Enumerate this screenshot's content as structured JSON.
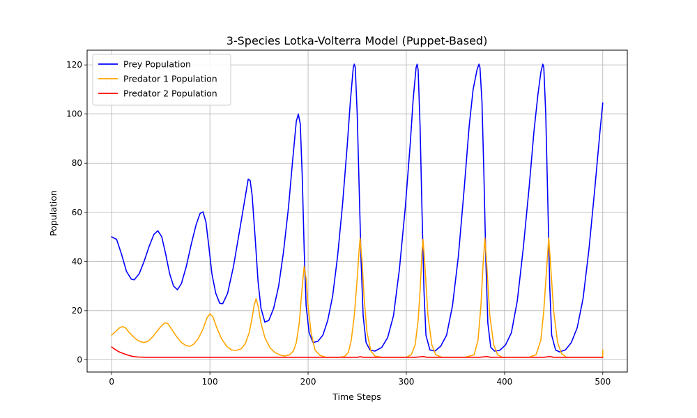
{
  "chart_data": {
    "type": "line",
    "title": "3-Species Lotka-Volterra Model (Puppet-Based)",
    "xlabel": "Time Steps",
    "ylabel": "Population",
    "xlim": [
      -25,
      525
    ],
    "ylim": [
      -5,
      126
    ],
    "xticks": [
      0,
      100,
      200,
      300,
      400,
      500
    ],
    "yticks": [
      0,
      20,
      40,
      60,
      80,
      100,
      120
    ],
    "grid": true,
    "legend_position": "top-left",
    "series": [
      {
        "name": "Prey Population",
        "color": "#0000ff",
        "points": [
          [
            0,
            50
          ],
          [
            5,
            49
          ],
          [
            10,
            43
          ],
          [
            15,
            36
          ],
          [
            20,
            32.8
          ],
          [
            23,
            32.5
          ],
          [
            28,
            35
          ],
          [
            33,
            40
          ],
          [
            38,
            46
          ],
          [
            43,
            51
          ],
          [
            47,
            52.5
          ],
          [
            51,
            50
          ],
          [
            55,
            43
          ],
          [
            59,
            35
          ],
          [
            63,
            30
          ],
          [
            67,
            28.5
          ],
          [
            71,
            31
          ],
          [
            76,
            38
          ],
          [
            81,
            47
          ],
          [
            86,
            55
          ],
          [
            90,
            59.5
          ],
          [
            93,
            60.2
          ],
          [
            96,
            56
          ],
          [
            99,
            46
          ],
          [
            102,
            35
          ],
          [
            106,
            27
          ],
          [
            110,
            23
          ],
          [
            113,
            22.8
          ],
          [
            118,
            27
          ],
          [
            124,
            38
          ],
          [
            130,
            52
          ],
          [
            135,
            64
          ],
          [
            139,
            73.5
          ],
          [
            141,
            73
          ],
          [
            143,
            67
          ],
          [
            146,
            50
          ],
          [
            149,
            32
          ],
          [
            152,
            21
          ],
          [
            156,
            15.3
          ],
          [
            160,
            16
          ],
          [
            165,
            21
          ],
          [
            170,
            30
          ],
          [
            175,
            44
          ],
          [
            180,
            62
          ],
          [
            184,
            80
          ],
          [
            188,
            97
          ],
          [
            190,
            100
          ],
          [
            192,
            96
          ],
          [
            194,
            75
          ],
          [
            196,
            45
          ],
          [
            198,
            22
          ],
          [
            201,
            11
          ],
          [
            205,
            7
          ],
          [
            210,
            7.5
          ],
          [
            215,
            10
          ],
          [
            220,
            16
          ],
          [
            225,
            26
          ],
          [
            230,
            42
          ],
          [
            235,
            63
          ],
          [
            240,
            88
          ],
          [
            243,
            105
          ],
          [
            246,
            119
          ],
          [
            247,
            120.3
          ],
          [
            248,
            119
          ],
          [
            250,
            100
          ],
          [
            252,
            70
          ],
          [
            254,
            40
          ],
          [
            256,
            18
          ],
          [
            259,
            7
          ],
          [
            263,
            4
          ],
          [
            268,
            3.5
          ],
          [
            275,
            5
          ],
          [
            281,
            9
          ],
          [
            287,
            18
          ],
          [
            293,
            37
          ],
          [
            299,
            62
          ],
          [
            304,
            88
          ],
          [
            307,
            106
          ],
          [
            310,
            119
          ],
          [
            311,
            120.3
          ],
          [
            312,
            118
          ],
          [
            314,
            95
          ],
          [
            316,
            60
          ],
          [
            318,
            28
          ],
          [
            320,
            10
          ],
          [
            324,
            4
          ],
          [
            329,
            3.5
          ],
          [
            335,
            5.5
          ],
          [
            341,
            10
          ],
          [
            347,
            22
          ],
          [
            353,
            42
          ],
          [
            359,
            70
          ],
          [
            364,
            95
          ],
          [
            368,
            110
          ],
          [
            372,
            118
          ],
          [
            374,
            120.3
          ],
          [
            375,
            119
          ],
          [
            377,
            105
          ],
          [
            379,
            75
          ],
          [
            381,
            40
          ],
          [
            383,
            15
          ],
          [
            386,
            5
          ],
          [
            390,
            3.5
          ],
          [
            395,
            3.8
          ],
          [
            401,
            6
          ],
          [
            407,
            11
          ],
          [
            413,
            24
          ],
          [
            419,
            45
          ],
          [
            425,
            70
          ],
          [
            430,
            93
          ],
          [
            434,
            108
          ],
          [
            437,
            117
          ],
          [
            439,
            120.3
          ],
          [
            440,
            119
          ],
          [
            442,
            100
          ],
          [
            444,
            65
          ],
          [
            446,
            30
          ],
          [
            448,
            10
          ],
          [
            452,
            4
          ],
          [
            456,
            3.2
          ],
          [
            462,
            4
          ],
          [
            468,
            7
          ],
          [
            474,
            13
          ],
          [
            480,
            25
          ],
          [
            486,
            45
          ],
          [
            492,
            70
          ],
          [
            497,
            92
          ],
          [
            500,
            104.5
          ]
        ]
      },
      {
        "name": "Predator 1 Population",
        "color": "#ffa500",
        "points": [
          [
            0,
            10
          ],
          [
            4,
            11.5
          ],
          [
            8,
            13
          ],
          [
            11,
            13.5
          ],
          [
            14,
            13
          ],
          [
            18,
            11
          ],
          [
            23,
            9
          ],
          [
            28,
            7.5
          ],
          [
            33,
            7
          ],
          [
            37,
            7.5
          ],
          [
            41,
            9
          ],
          [
            45,
            11
          ],
          [
            50,
            13.5
          ],
          [
            54,
            15
          ],
          [
            57,
            14.8
          ],
          [
            61,
            12.5
          ],
          [
            66,
            9.5
          ],
          [
            71,
            7
          ],
          [
            76,
            5.7
          ],
          [
            80,
            5.5
          ],
          [
            84,
            6.5
          ],
          [
            88,
            8.5
          ],
          [
            93,
            12.5
          ],
          [
            97,
            17
          ],
          [
            100,
            18.7
          ],
          [
            103,
            17.5
          ],
          [
            107,
            13
          ],
          [
            112,
            8.5
          ],
          [
            117,
            5.5
          ],
          [
            122,
            4
          ],
          [
            127,
            3.8
          ],
          [
            132,
            4.5
          ],
          [
            136,
            6.5
          ],
          [
            140,
            11
          ],
          [
            143,
            17
          ],
          [
            145,
            22
          ],
          [
            147,
            24.8
          ],
          [
            149,
            22
          ],
          [
            152,
            15
          ],
          [
            156,
            9
          ],
          [
            161,
            5
          ],
          [
            166,
            3
          ],
          [
            171,
            2
          ],
          [
            176,
            1.5
          ],
          [
            181,
            2
          ],
          [
            185,
            3.5
          ],
          [
            188,
            7
          ],
          [
            191,
            15
          ],
          [
            193,
            25
          ],
          [
            195,
            34
          ],
          [
            196,
            38
          ],
          [
            198,
            33
          ],
          [
            200,
            22
          ],
          [
            203,
            11
          ],
          [
            207,
            4
          ],
          [
            212,
            1.8
          ],
          [
            218,
            1
          ],
          [
            225,
            1
          ],
          [
            232,
            1
          ],
          [
            237,
            1.3
          ],
          [
            241,
            3
          ],
          [
            244,
            8
          ],
          [
            247,
            18
          ],
          [
            250,
            33
          ],
          [
            252,
            45
          ],
          [
            253,
            49.5
          ],
          [
            255,
            40
          ],
          [
            257,
            25
          ],
          [
            260,
            11
          ],
          [
            264,
            3.5
          ],
          [
            268,
            1.5
          ],
          [
            275,
            1
          ],
          [
            290,
            1
          ],
          [
            300,
            1
          ],
          [
            305,
            2
          ],
          [
            309,
            6
          ],
          [
            312,
            16
          ],
          [
            314,
            28
          ],
          [
            316,
            44
          ],
          [
            317,
            49
          ],
          [
            319,
            38
          ],
          [
            322,
            18
          ],
          [
            326,
            6
          ],
          [
            330,
            2
          ],
          [
            336,
            1
          ],
          [
            360,
            1
          ],
          [
            369,
            2
          ],
          [
            373,
            8
          ],
          [
            376,
            22
          ],
          [
            378,
            38
          ],
          [
            380,
            49.5
          ],
          [
            382,
            38
          ],
          [
            385,
            18
          ],
          [
            389,
            6
          ],
          [
            393,
            2
          ],
          [
            398,
            1
          ],
          [
            425,
            1
          ],
          [
            432,
            2
          ],
          [
            437,
            8
          ],
          [
            440,
            20
          ],
          [
            443,
            38
          ],
          [
            445,
            49.5
          ],
          [
            447,
            38
          ],
          [
            450,
            20
          ],
          [
            454,
            7
          ],
          [
            458,
            2.5
          ],
          [
            463,
            1
          ],
          [
            500,
            1
          ],
          [
            500,
            4
          ]
        ]
      },
      {
        "name": "Predator 2 Population",
        "color": "#ff0000",
        "points": [
          [
            0,
            5.2
          ],
          [
            3,
            4.3
          ],
          [
            7,
            3.3
          ],
          [
            12,
            2.5
          ],
          [
            17,
            1.8
          ],
          [
            22,
            1.3
          ],
          [
            27,
            1.1
          ],
          [
            35,
            1
          ],
          [
            100,
            1
          ],
          [
            200,
            1
          ],
          [
            250,
            1
          ],
          [
            253,
            1.2
          ],
          [
            256,
            1
          ],
          [
            310,
            1
          ],
          [
            317,
            1.3
          ],
          [
            321,
            1
          ],
          [
            375,
            1
          ],
          [
            382,
            1.3
          ],
          [
            386,
            1
          ],
          [
            440,
            1
          ],
          [
            446,
            1.3
          ],
          [
            450,
            1
          ],
          [
            500,
            1
          ]
        ]
      }
    ]
  }
}
